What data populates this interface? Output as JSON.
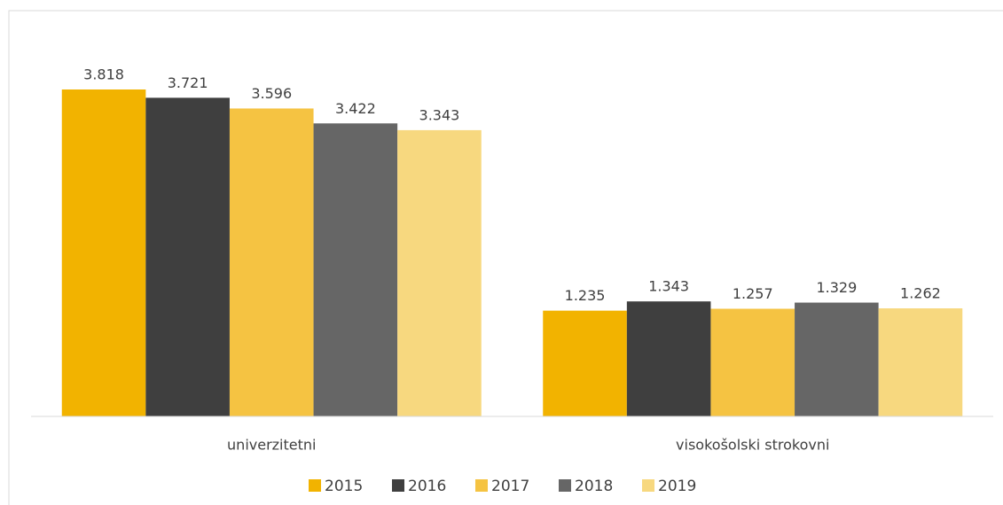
{
  "chart_data": {
    "type": "bar",
    "categories": [
      "univerzitetni",
      "visokošolski strokovni"
    ],
    "series": [
      {
        "name": "2015",
        "color": "#f2b300",
        "values": [
          3.818,
          1.235
        ]
      },
      {
        "name": "2016",
        "color": "#3f3f3f",
        "values": [
          3.721,
          1.343
        ]
      },
      {
        "name": "2017",
        "color": "#f5c342",
        "values": [
          3.596,
          1.257
        ]
      },
      {
        "name": "2018",
        "color": "#666666",
        "values": [
          3.422,
          1.329
        ]
      },
      {
        "name": "2019",
        "color": "#f7d87f",
        "values": [
          3.343,
          1.262
        ]
      }
    ],
    "legend": "bottom"
  }
}
